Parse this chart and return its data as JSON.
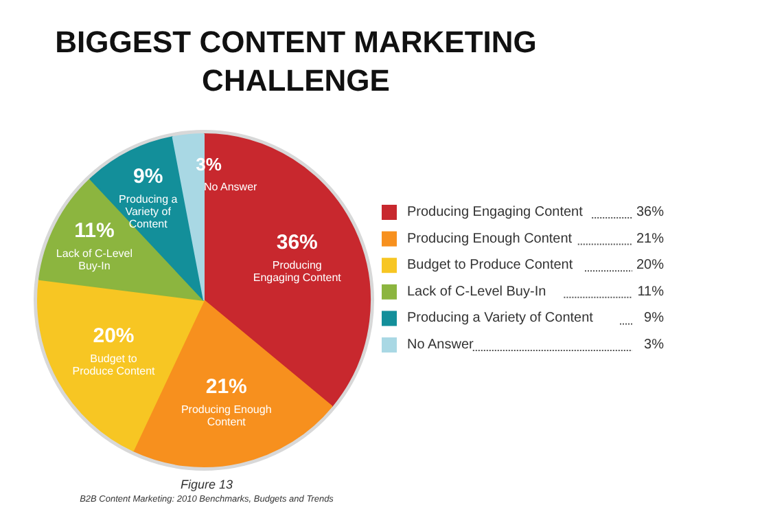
{
  "chart_data": {
    "type": "pie",
    "title": "BIGGEST CONTENT MARKETING CHALLENGE",
    "categories": [
      "Producing Engaging Content",
      "Producing Enough Content",
      "Budget to Produce Content",
      "Lack of C-Level Buy-In",
      "Producing a Variety of Content",
      "No Answer"
    ],
    "values": [
      36,
      21,
      20,
      11,
      9,
      3
    ],
    "value_labels": [
      "36%",
      "21%",
      "20%",
      "11%",
      "9%",
      "3%"
    ],
    "colors": [
      "#c8282e",
      "#f7901e",
      "#f7c623",
      "#8cb53f",
      "#138f9a",
      "#a9d8e4"
    ],
    "legend": "right",
    "annotations": [
      "Figure 13",
      "B2B Content Marketing: 2010 Benchmarks, Budgets and Trends"
    ]
  }
}
